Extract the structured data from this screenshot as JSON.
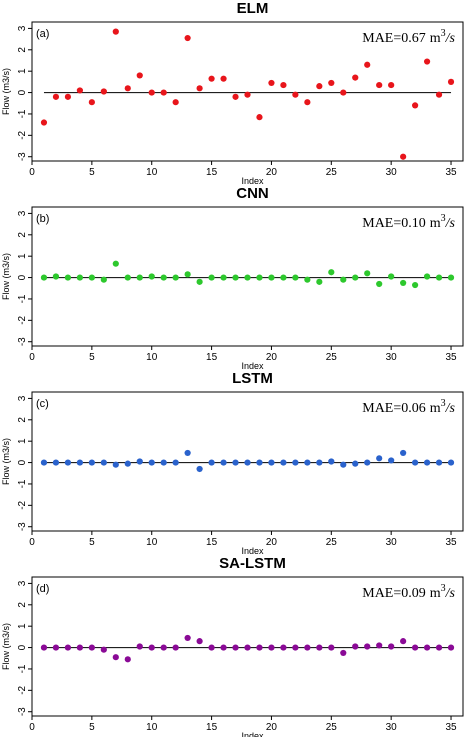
{
  "chart_data": [
    {
      "type": "scatter",
      "title": "ELM",
      "panel_label": "(a)",
      "annotation": {
        "prefix": "MAE=",
        "value": "0.67",
        "unit": "m",
        "unit_exp": "3",
        "unit_rest": "/s"
      },
      "xlabel": "Index",
      "ylabel": "Flow (m3/s)",
      "xlim": [
        0,
        36
      ],
      "ylim": [
        -3.2,
        3.3
      ],
      "xticks": [
        0,
        5,
        10,
        15,
        20,
        25,
        30,
        35
      ],
      "yticks": [
        -3,
        -2,
        -1,
        0,
        1,
        2,
        3
      ],
      "reference_line": 0,
      "color": "#e8151b",
      "x": [
        1,
        2,
        3,
        4,
        5,
        6,
        7,
        8,
        9,
        10,
        11,
        12,
        13,
        14,
        15,
        16,
        17,
        18,
        19,
        20,
        21,
        22,
        23,
        24,
        25,
        26,
        27,
        28,
        29,
        30,
        31,
        32,
        33,
        34,
        35
      ],
      "y": [
        -1.4,
        -0.2,
        -0.2,
        0.1,
        -0.45,
        0.05,
        2.85,
        0.2,
        0.8,
        0.0,
        0.0,
        -0.45,
        2.55,
        0.2,
        0.65,
        0.65,
        -0.2,
        -0.1,
        -1.15,
        0.45,
        0.35,
        -0.1,
        -0.45,
        0.3,
        0.45,
        0.0,
        0.7,
        1.3,
        0.35,
        0.35,
        -3.0,
        -0.6,
        1.45,
        -0.1,
        0.5
      ]
    },
    {
      "type": "scatter",
      "title": "CNN",
      "panel_label": "(b)",
      "annotation": {
        "prefix": "MAE=",
        "value": "0.10",
        "unit": "m",
        "unit_exp": "3",
        "unit_rest": "/s"
      },
      "xlabel": "Index",
      "ylabel": "Flow (m3/s)",
      "xlim": [
        0,
        36
      ],
      "ylim": [
        -3.2,
        3.3
      ],
      "xticks": [
        0,
        5,
        10,
        15,
        20,
        25,
        30,
        35
      ],
      "yticks": [
        -3,
        -2,
        -1,
        0,
        1,
        2,
        3
      ],
      "reference_line": 0,
      "color": "#2dc82d",
      "x": [
        1,
        2,
        3,
        4,
        5,
        6,
        7,
        8,
        9,
        10,
        11,
        12,
        13,
        14,
        15,
        16,
        17,
        18,
        19,
        20,
        21,
        22,
        23,
        24,
        25,
        26,
        27,
        28,
        29,
        30,
        31,
        32,
        33,
        34,
        35
      ],
      "y": [
        0.0,
        0.05,
        0.0,
        0.0,
        0.0,
        -0.1,
        0.65,
        0.0,
        0.0,
        0.05,
        0.0,
        0.0,
        0.15,
        -0.2,
        0.0,
        0.0,
        0.0,
        0.0,
        0.0,
        0.0,
        0.0,
        0.0,
        -0.1,
        -0.2,
        0.25,
        -0.1,
        0.0,
        0.2,
        -0.3,
        0.05,
        -0.25,
        -0.35,
        0.05,
        0.0,
        0.0
      ]
    },
    {
      "type": "scatter",
      "title": "LSTM",
      "panel_label": "(c)",
      "annotation": {
        "prefix": "MAE=",
        "value": "0.06",
        "unit": "m",
        "unit_exp": "3",
        "unit_rest": "/s"
      },
      "xlabel": "Index",
      "ylabel": "Flow (m3/s)",
      "xlim": [
        0,
        36
      ],
      "ylim": [
        -3.2,
        3.3
      ],
      "xticks": [
        0,
        5,
        10,
        15,
        20,
        25,
        30,
        35
      ],
      "yticks": [
        -3,
        -2,
        -1,
        0,
        1,
        2,
        3
      ],
      "reference_line": 0,
      "color": "#2a62cc",
      "x": [
        1,
        2,
        3,
        4,
        5,
        6,
        7,
        8,
        9,
        10,
        11,
        12,
        13,
        14,
        15,
        16,
        17,
        18,
        19,
        20,
        21,
        22,
        23,
        24,
        25,
        26,
        27,
        28,
        29,
        30,
        31,
        32,
        33,
        34,
        35
      ],
      "y": [
        0.0,
        0.0,
        0.0,
        0.0,
        0.0,
        0.0,
        -0.1,
        -0.05,
        0.05,
        0.0,
        0.0,
        0.0,
        0.45,
        -0.3,
        0.0,
        0.0,
        0.0,
        0.0,
        0.0,
        0.0,
        0.0,
        0.0,
        0.0,
        0.0,
        0.05,
        -0.1,
        -0.05,
        0.0,
        0.2,
        0.1,
        0.45,
        0.0,
        0.0,
        0.0,
        0.0
      ]
    },
    {
      "type": "scatter",
      "title": "SA-LSTM",
      "panel_label": "(d)",
      "annotation": {
        "prefix": "MAE=",
        "value": "0.09",
        "unit": "m",
        "unit_exp": "3",
        "unit_rest": "/s"
      },
      "xlabel": "Index",
      "ylabel": "Flow (m3/s)",
      "xlim": [
        0,
        36
      ],
      "ylim": [
        -3.2,
        3.3
      ],
      "xticks": [
        0,
        5,
        10,
        15,
        20,
        25,
        30,
        35
      ],
      "yticks": [
        -3,
        -2,
        -1,
        0,
        1,
        2,
        3
      ],
      "reference_line": 0,
      "color": "#8a0a96",
      "x": [
        1,
        2,
        3,
        4,
        5,
        6,
        7,
        8,
        9,
        10,
        11,
        12,
        13,
        14,
        15,
        16,
        17,
        18,
        19,
        20,
        21,
        22,
        23,
        24,
        25,
        26,
        27,
        28,
        29,
        30,
        31,
        32,
        33,
        34,
        35
      ],
      "y": [
        0.0,
        0.0,
        0.0,
        0.0,
        0.0,
        -0.1,
        -0.45,
        -0.55,
        0.05,
        0.0,
        0.0,
        0.0,
        0.45,
        0.3,
        0.0,
        0.0,
        0.0,
        0.0,
        0.0,
        0.0,
        0.0,
        0.0,
        0.0,
        0.0,
        0.0,
        -0.25,
        0.05,
        0.05,
        0.1,
        0.05,
        0.3,
        0.0,
        0.0,
        0.0,
        0.0
      ]
    }
  ]
}
